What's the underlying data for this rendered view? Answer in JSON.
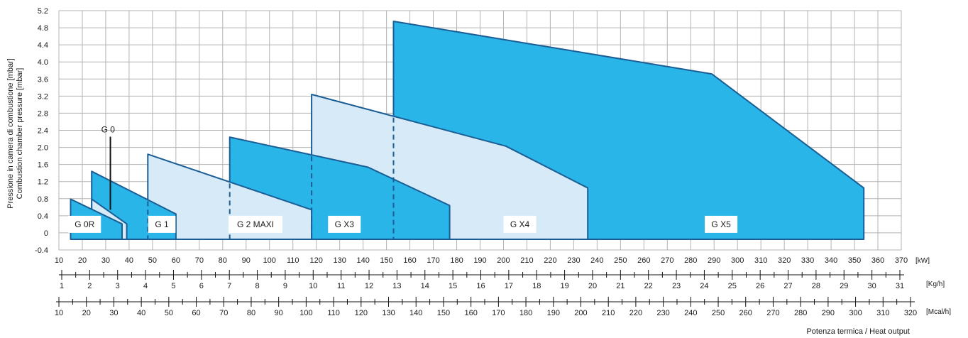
{
  "chart_data": {
    "type": "area",
    "ylabel_lines": [
      "Pressione in camera di combustione [mbar]",
      "Combustion chamber pressure [mbar]"
    ],
    "xlabel": "Potenza termica / Heat output",
    "xlim": [
      10,
      370
    ],
    "ylim": [
      -0.4,
      5.2
    ],
    "grid": true,
    "y_ticks": [
      "-0.4",
      "0",
      "0.4",
      "0.8",
      "1.2",
      "1.6",
      "2.0",
      "2.4",
      "2.8",
      "3.2",
      "3.6",
      "4.0",
      "4.4",
      "4.8",
      "5.2"
    ],
    "axes": [
      {
        "unit": "[kW]",
        "min": 10,
        "max": 370,
        "step": 10,
        "ticks": [
          "10",
          "20",
          "30",
          "40",
          "50",
          "60",
          "70",
          "80",
          "90",
          "100",
          "110",
          "120",
          "130",
          "140",
          "150",
          "160",
          "170",
          "180",
          "190",
          "200",
          "210",
          "220",
          "230",
          "240",
          "250",
          "260",
          "270",
          "280",
          "290",
          "300",
          "310",
          "320",
          "330",
          "340",
          "350",
          "360",
          "370"
        ]
      },
      {
        "unit": "[Kg/h]",
        "min": 1,
        "max": 31,
        "step": 1,
        "ticks": [
          "1",
          "2",
          "3",
          "4",
          "5",
          "6",
          "7",
          "8",
          "9",
          "10",
          "11",
          "12",
          "13",
          "14",
          "15",
          "16",
          "17",
          "18",
          "19",
          "20",
          "21",
          "22",
          "23",
          "24",
          "25",
          "26",
          "27",
          "28",
          "29",
          "30",
          "31"
        ]
      },
      {
        "unit": "[Mcal/h]",
        "min": 10,
        "max": 320,
        "step": 10,
        "ticks": [
          "10",
          "20",
          "30",
          "40",
          "50",
          "60",
          "70",
          "80",
          "90",
          "100",
          "110",
          "120",
          "130",
          "140",
          "150",
          "160",
          "170",
          "180",
          "190",
          "200",
          "210",
          "220",
          "230",
          "240",
          "250",
          "260",
          "270",
          "280",
          "290",
          "300",
          "310",
          "320"
        ]
      }
    ],
    "series": [
      {
        "name": "G X5",
        "fill": "dark",
        "points": [
          [
            153,
            -0.15
          ],
          [
            153,
            4.95
          ],
          [
            289,
            3.72
          ],
          [
            354,
            1.05
          ],
          [
            354,
            -0.15
          ]
        ],
        "dashed_left": false
      },
      {
        "name": "G X4",
        "fill": "light",
        "points": [
          [
            118,
            -0.15
          ],
          [
            118,
            3.24
          ],
          [
            201,
            2.03
          ],
          [
            236,
            1.05
          ],
          [
            236,
            -0.15
          ]
        ],
        "dashed_left": false,
        "dashed_x": 153
      },
      {
        "name": "G X3",
        "fill": "dark",
        "points": [
          [
            83,
            -0.15
          ],
          [
            83,
            2.24
          ],
          [
            142,
            1.54
          ],
          [
            177,
            0.64
          ],
          [
            177,
            -0.15
          ]
        ],
        "dashed_left": false,
        "dashed_x": 118
      },
      {
        "name": "G 2 MAXI",
        "fill": "light",
        "points": [
          [
            48,
            -0.15
          ],
          [
            48,
            1.84
          ],
          [
            118,
            0.54
          ],
          [
            118,
            -0.15
          ]
        ],
        "dashed_left": false,
        "dashed_x": 83
      },
      {
        "name": "G 1",
        "fill": "dark",
        "points": [
          [
            24,
            -0.15
          ],
          [
            24,
            1.44
          ],
          [
            60,
            0.44
          ],
          [
            60,
            -0.15
          ]
        ],
        "dashed_left": false,
        "dashed_x": 48
      },
      {
        "name": "G 0",
        "fill": "light",
        "points": [
          [
            24,
            -0.15
          ],
          [
            24,
            0.79
          ],
          [
            39,
            0.21
          ],
          [
            39,
            -0.15
          ]
        ],
        "dashed_left": false
      },
      {
        "name": "G 0R",
        "fill": "dark",
        "points": [
          [
            15,
            -0.15
          ],
          [
            15,
            0.79
          ],
          [
            37,
            0.21
          ],
          [
            37,
            -0.15
          ]
        ],
        "dashed_left": false
      }
    ],
    "labels": [
      {
        "text": "G 0R",
        "x": 21,
        "y": 0.2
      },
      {
        "text": "G 0",
        "x": 31,
        "y": 2.35
      },
      {
        "text": "G 1",
        "x": 54,
        "y": 0.2
      },
      {
        "text": "G 2 MAXI",
        "x": 94,
        "y": 0.2
      },
      {
        "text": "G X3",
        "x": 132,
        "y": 0.2
      },
      {
        "text": "G X4",
        "x": 207,
        "y": 0.2
      },
      {
        "text": "G X5",
        "x": 293,
        "y": 0.2
      }
    ],
    "colors": {
      "dark": "#29b5e8",
      "light": "#d6ebf7",
      "stroke": "#1b5e95",
      "grid": "#b3b3b3"
    }
  }
}
